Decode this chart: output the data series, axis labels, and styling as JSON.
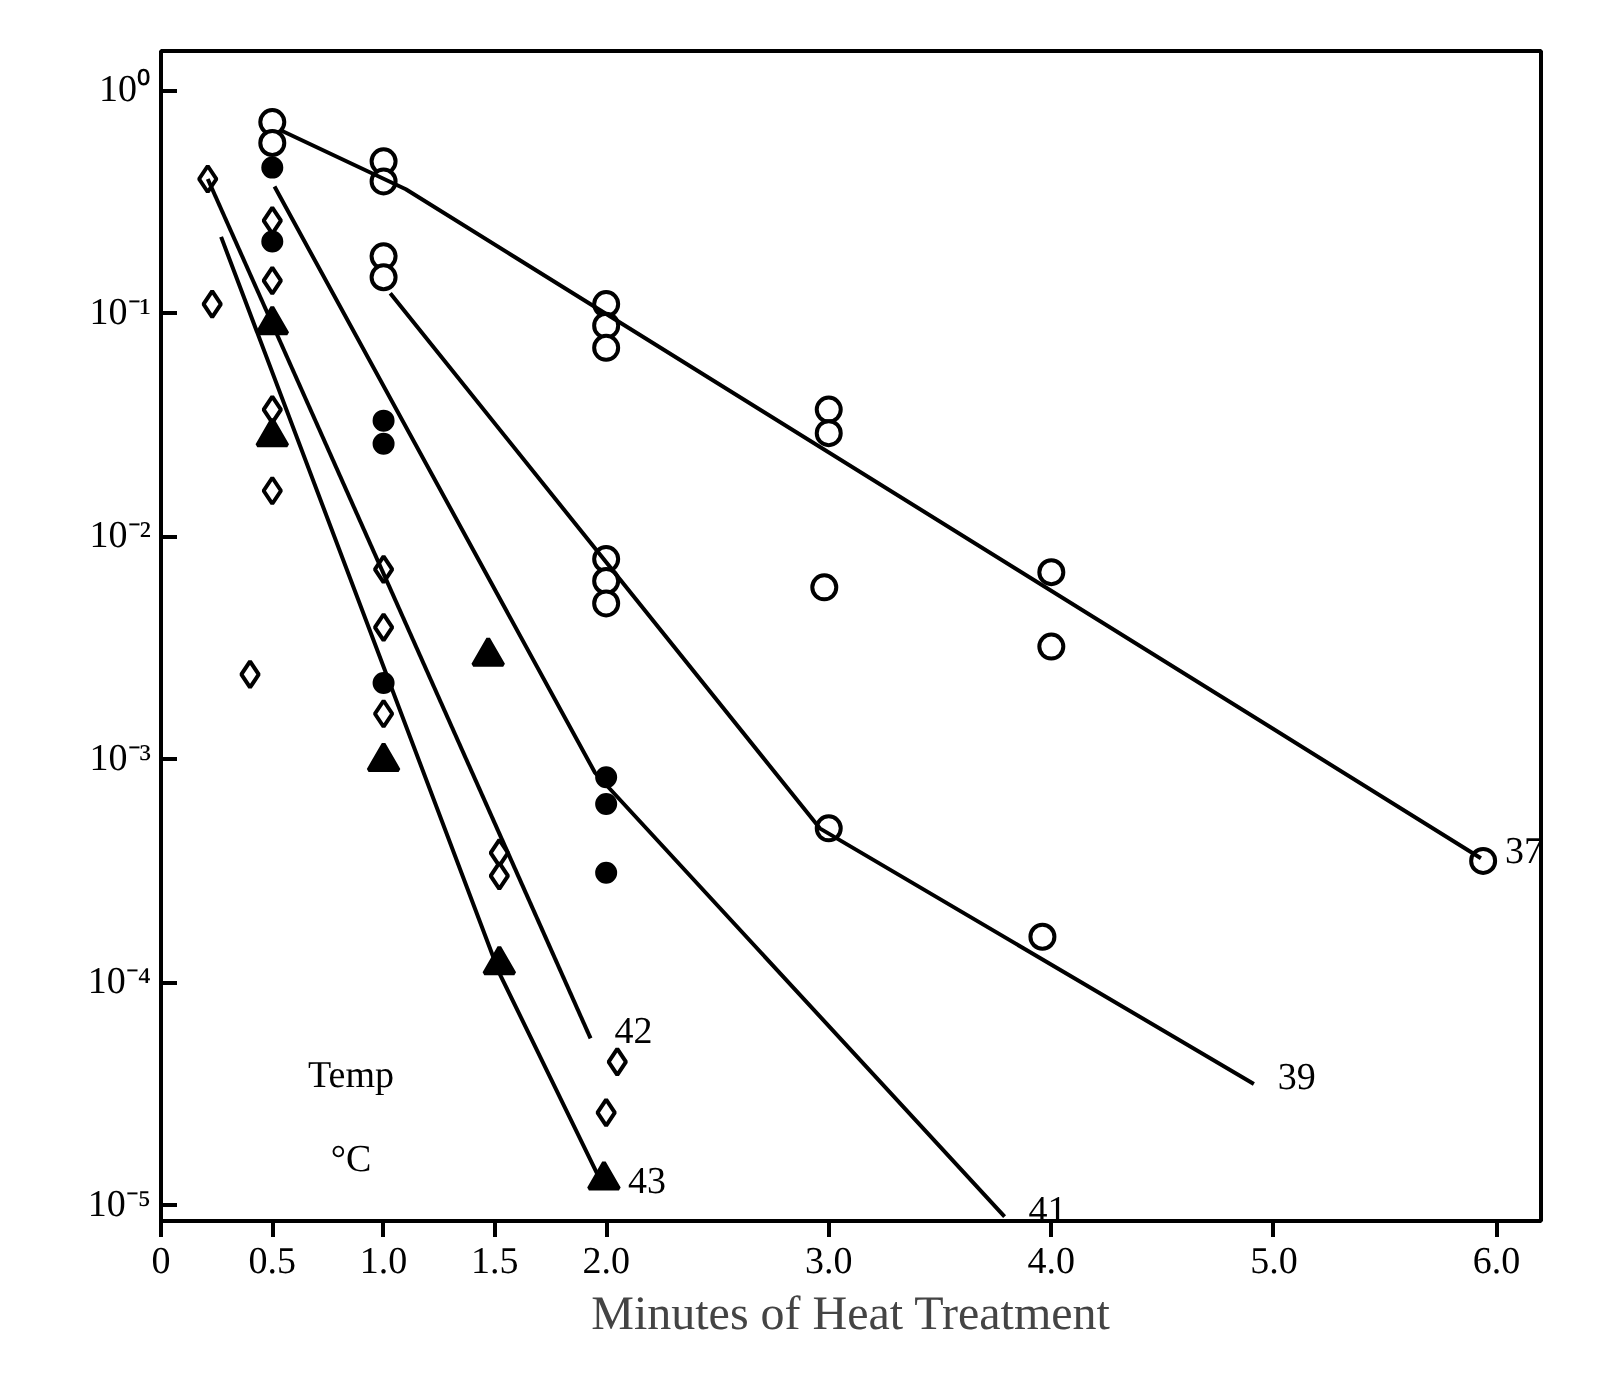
{
  "chart_data": {
    "type": "scatter",
    "xlabel": "Minutes of Heat Treatment",
    "log": "y",
    "grid": false,
    "legend": false,
    "xlim": [
      0,
      6.2
    ],
    "ylim": [
      8.5e-06,
      1.5
    ],
    "xticks": [
      0,
      {
        "value": 0.5,
        "label": "0.5"
      },
      {
        "value": 1,
        "label": "1.0"
      },
      {
        "value": 1.5,
        "label": "1.5"
      },
      {
        "value": 2,
        "label": "2.0"
      },
      {
        "value": 3,
        "label": "3.0"
      },
      {
        "value": 4,
        "label": "4.0"
      },
      {
        "value": 5,
        "label": "5.0"
      },
      {
        "value": 6,
        "label": "6.0"
      }
    ],
    "yticks": [
      {
        "value": 1,
        "label": "10⁰"
      },
      {
        "value": 0.1,
        "label": "10⁻¹"
      },
      {
        "value": 0.01,
        "label": "10⁻²"
      },
      {
        "value": 0.001,
        "label": "10⁻³"
      },
      {
        "value": 0.0001,
        "label": "10⁻⁴"
      },
      {
        "value": 1e-05,
        "label": "10⁻⁵"
      }
    ],
    "series": [
      {
        "marker": "circle",
        "color": "#000000",
        "x": [
          0.5,
          0.5,
          1.0,
          1.0,
          2.0,
          2.0,
          2.0,
          3.0,
          3.0,
          2.98,
          4.0,
          4.0,
          5.94,
          1.0,
          1.0,
          2.0,
          2.0,
          2.0,
          3.0,
          3.96
        ],
        "values": [
          0.72,
          0.58,
          0.48,
          0.39,
          0.11,
          0.088,
          0.07,
          0.037,
          0.029,
          0.0059,
          0.0069,
          0.0032,
          0.00035,
          0.18,
          0.145,
          0.0079,
          0.0063,
          0.005,
          0.00049,
          0.00016
        ]
      },
      {
        "marker": "dot",
        "color": "#000000",
        "x": [
          0.5,
          0.5,
          1.0,
          1.0,
          1.0,
          2.0,
          2.0,
          2.0
        ],
        "values": [
          0.45,
          0.21,
          0.033,
          0.026,
          0.0022,
          0.00083,
          0.00063,
          0.00031
        ]
      },
      {
        "marker": "diamond",
        "color": "#000000",
        "x": [
          0.21,
          0.23,
          0.5,
          0.5,
          0.5,
          0.5,
          0.4,
          1.0,
          1.0,
          1.0,
          1.52,
          1.52,
          2.05,
          2.0
        ],
        "values": [
          0.4,
          0.11,
          0.26,
          0.14,
          0.037,
          0.016,
          0.0024,
          0.0071,
          0.0039,
          0.0016,
          0.00038,
          0.0003,
          4.4e-05,
          2.6e-05
        ]
      },
      {
        "marker": "triangle",
        "color": "#000000",
        "x": [
          0.5,
          0.5,
          1.47,
          1.0,
          1.52,
          1.99
        ],
        "values": [
          0.089,
          0.028,
          0.0029,
          0.00098,
          0.00012,
          1.3e-05
        ]
      },
      {
        "type": "line",
        "name": "37",
        "color": "#000000",
        "x": [
          0.54,
          1.1,
          5.93
        ],
        "values": [
          0.66,
          0.36,
          0.00036
        ]
      },
      {
        "type": "line",
        "name": "39",
        "color": "#000000",
        "x": [
          1.03,
          2.96,
          4.91
        ],
        "values": [
          0.123,
          0.00049,
          3.5e-05
        ]
      },
      {
        "type": "line",
        "name": "41",
        "color": "#000000",
        "x": [
          0.51,
          1.95,
          3.79
        ],
        "values": [
          0.37,
          0.00087,
          8.9e-06
        ]
      },
      {
        "type": "line",
        "name": "42",
        "color": "#000000",
        "x": [
          0.21,
          1.93
        ],
        "values": [
          0.4,
          5.6e-05
        ]
      },
      {
        "type": "line",
        "name": "43",
        "color": "#000000",
        "x": [
          0.27,
          1.52,
          1.99
        ],
        "values": [
          0.22,
          0.00011,
          1.2e-05
        ]
      }
    ],
    "annotations": [
      "Temp",
      "°C"
    ]
  }
}
